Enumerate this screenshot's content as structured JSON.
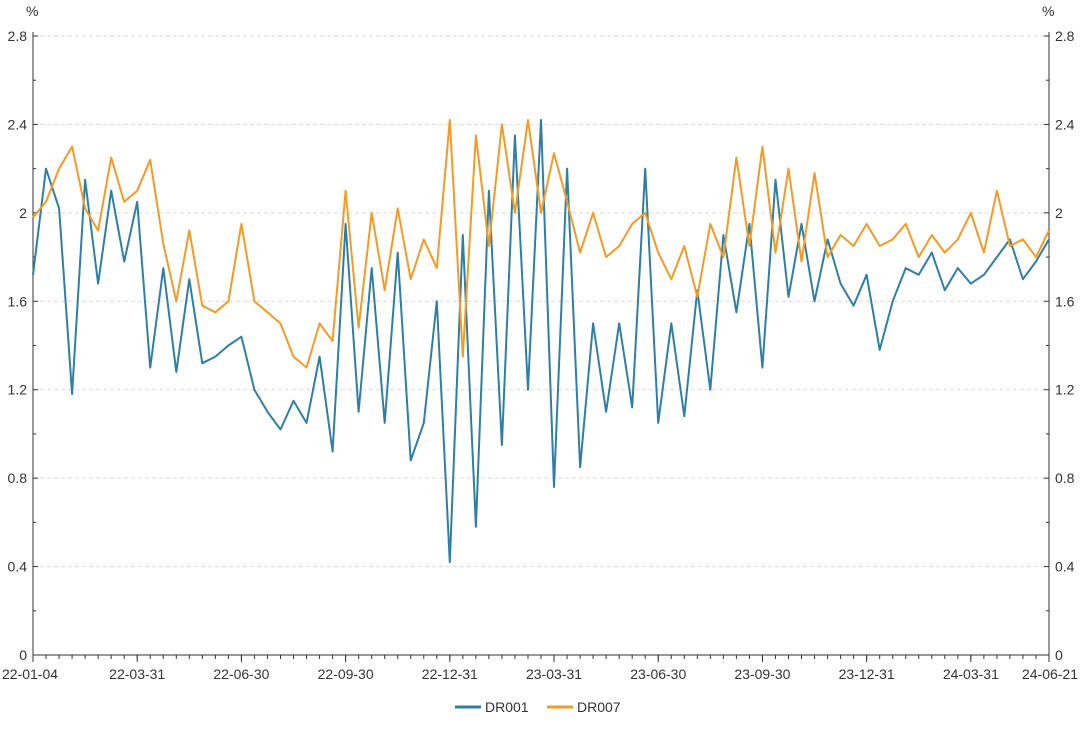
{
  "chart_data": {
    "type": "line",
    "title": "",
    "left_unit": "%",
    "right_unit": "%",
    "ylim": [
      0,
      2.8
    ],
    "y_ticks": [
      "0",
      "0.4",
      "0.8",
      "1.2",
      "1.6",
      "2",
      "2.4",
      "2.8"
    ],
    "y_tick_values": [
      0,
      0.4,
      0.8,
      1.2,
      1.6,
      2.0,
      2.4,
      2.8
    ],
    "x_ticks": [
      {
        "label": "22-01-04",
        "index": 0
      },
      {
        "label": "22-03-31",
        "index": 8
      },
      {
        "label": "22-06-30",
        "index": 16
      },
      {
        "label": "22-09-30",
        "index": 24
      },
      {
        "label": "22-12-31",
        "index": 32
      },
      {
        "label": "23-03-31",
        "index": 40
      },
      {
        "label": "23-06-30",
        "index": 48
      },
      {
        "label": "23-09-30",
        "index": 56
      },
      {
        "label": "23-12-31",
        "index": 64
      },
      {
        "label": "24-03-31",
        "index": 72
      },
      {
        "label": "24-06-21",
        "index": 78
      }
    ],
    "x_count": 79,
    "legend_position": "bottom-center",
    "series": [
      {
        "name": "DR001",
        "color": "#2e7fa6",
        "values": [
          1.72,
          2.2,
          2.02,
          1.18,
          2.15,
          1.68,
          2.1,
          1.78,
          2.05,
          1.3,
          1.75,
          1.28,
          1.7,
          1.32,
          1.35,
          1.4,
          1.44,
          1.2,
          1.1,
          1.02,
          1.15,
          1.05,
          1.35,
          0.92,
          1.95,
          1.1,
          1.75,
          1.05,
          1.82,
          0.88,
          1.05,
          1.6,
          0.42,
          1.9,
          0.58,
          2.1,
          0.95,
          2.35,
          1.2,
          2.42,
          0.76,
          2.2,
          0.85,
          1.5,
          1.1,
          1.5,
          1.12,
          2.2,
          1.05,
          1.5,
          1.08,
          1.65,
          1.2,
          1.9,
          1.55,
          1.95,
          1.3,
          2.15,
          1.62,
          1.95,
          1.6,
          1.88,
          1.68,
          1.58,
          1.72,
          1.38,
          1.6,
          1.75,
          1.72,
          1.82,
          1.65,
          1.75,
          1.68,
          1.72,
          1.8,
          1.88,
          1.7,
          1.78,
          1.88
        ]
      },
      {
        "name": "DR007",
        "color": "#f59a23",
        "values": [
          1.98,
          2.05,
          2.2,
          2.3,
          2.02,
          1.92,
          2.25,
          2.05,
          2.1,
          2.24,
          1.86,
          1.6,
          1.92,
          1.58,
          1.55,
          1.6,
          1.95,
          1.6,
          1.55,
          1.5,
          1.35,
          1.3,
          1.5,
          1.42,
          2.1,
          1.48,
          2.0,
          1.65,
          2.02,
          1.7,
          1.88,
          1.75,
          2.42,
          1.35,
          2.35,
          1.85,
          2.4,
          2.0,
          2.42,
          2.0,
          2.27,
          2.05,
          1.82,
          2.0,
          1.8,
          1.85,
          1.95,
          2.0,
          1.82,
          1.7,
          1.85,
          1.62,
          1.95,
          1.8,
          2.25,
          1.85,
          2.3,
          1.82,
          2.2,
          1.78,
          2.18,
          1.8,
          1.9,
          1.85,
          1.95,
          1.85,
          1.88,
          1.95,
          1.8,
          1.9,
          1.82,
          1.88,
          2.0,
          1.82,
          2.1,
          1.85,
          1.88,
          1.8,
          1.92
        ]
      }
    ]
  }
}
